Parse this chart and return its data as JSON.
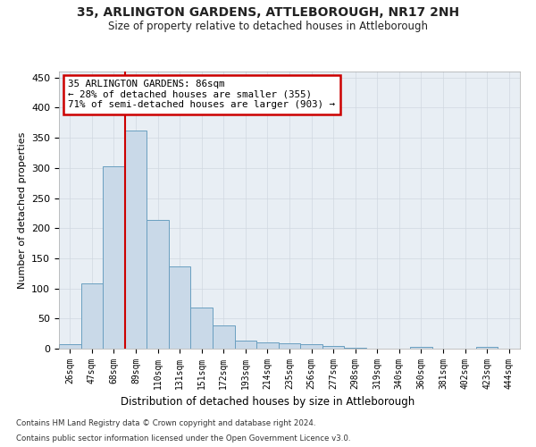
{
  "title1": "35, ARLINGTON GARDENS, ATTLEBOROUGH, NR17 2NH",
  "title2": "Size of property relative to detached houses in Attleborough",
  "xlabel": "Distribution of detached houses by size in Attleborough",
  "ylabel": "Number of detached properties",
  "footnote1": "Contains HM Land Registry data © Crown copyright and database right 2024.",
  "footnote2": "Contains public sector information licensed under the Open Government Licence v3.0.",
  "categories": [
    "26sqm",
    "47sqm",
    "68sqm",
    "89sqm",
    "110sqm",
    "131sqm",
    "151sqm",
    "172sqm",
    "193sqm",
    "214sqm",
    "235sqm",
    "256sqm",
    "277sqm",
    "298sqm",
    "319sqm",
    "340sqm",
    "360sqm",
    "381sqm",
    "402sqm",
    "423sqm",
    "444sqm"
  ],
  "values": [
    8,
    108,
    302,
    362,
    213,
    137,
    68,
    38,
    13,
    10,
    9,
    7,
    5,
    2,
    0,
    0,
    3,
    0,
    0,
    3,
    0
  ],
  "bar_color": "#c9d9e8",
  "bar_edge_color": "#6a9fc0",
  "grid_color": "#d0d8e0",
  "bg_color": "#e8eef4",
  "annotation_text": "35 ARLINGTON GARDENS: 86sqm\n← 28% of detached houses are smaller (355)\n71% of semi-detached houses are larger (903) →",
  "annotation_box_color": "#ffffff",
  "annotation_border_color": "#cc0000",
  "vline_color": "#cc0000",
  "vline_x": 2.5,
  "ylim": [
    0,
    460
  ],
  "yticks": [
    0,
    50,
    100,
    150,
    200,
    250,
    300,
    350,
    400,
    450
  ]
}
